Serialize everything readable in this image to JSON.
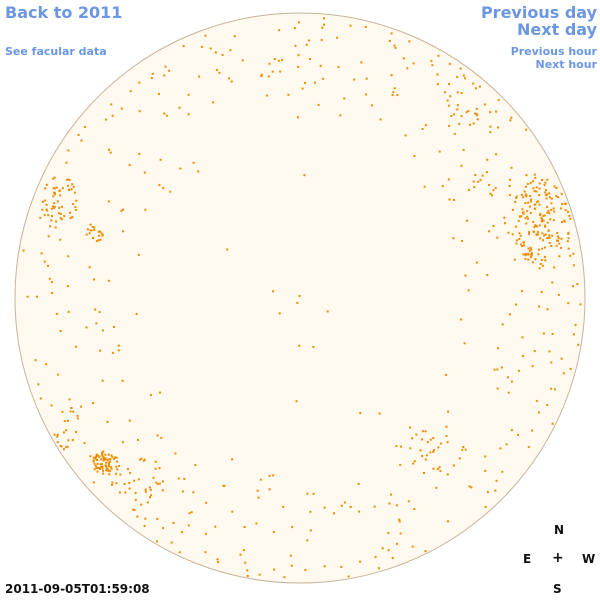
{
  "nav": {
    "back_label": "Back to 2011",
    "facular_label": "See facular data",
    "prev_day_label": "Previous day",
    "next_day_label": "Next day",
    "prev_hour_label": "Previous hour",
    "next_hour_label": "Next hour"
  },
  "compass": {
    "north": "N",
    "east": "E",
    "center": "+",
    "west": "W",
    "south": "S"
  },
  "timestamp": "2011-09-05T01:59:08",
  "colors": {
    "link": "#6b96e3",
    "disk_fill": "#fff9ef",
    "disk_stroke": "#c8b49a",
    "facula": "#f08c00"
  }
}
